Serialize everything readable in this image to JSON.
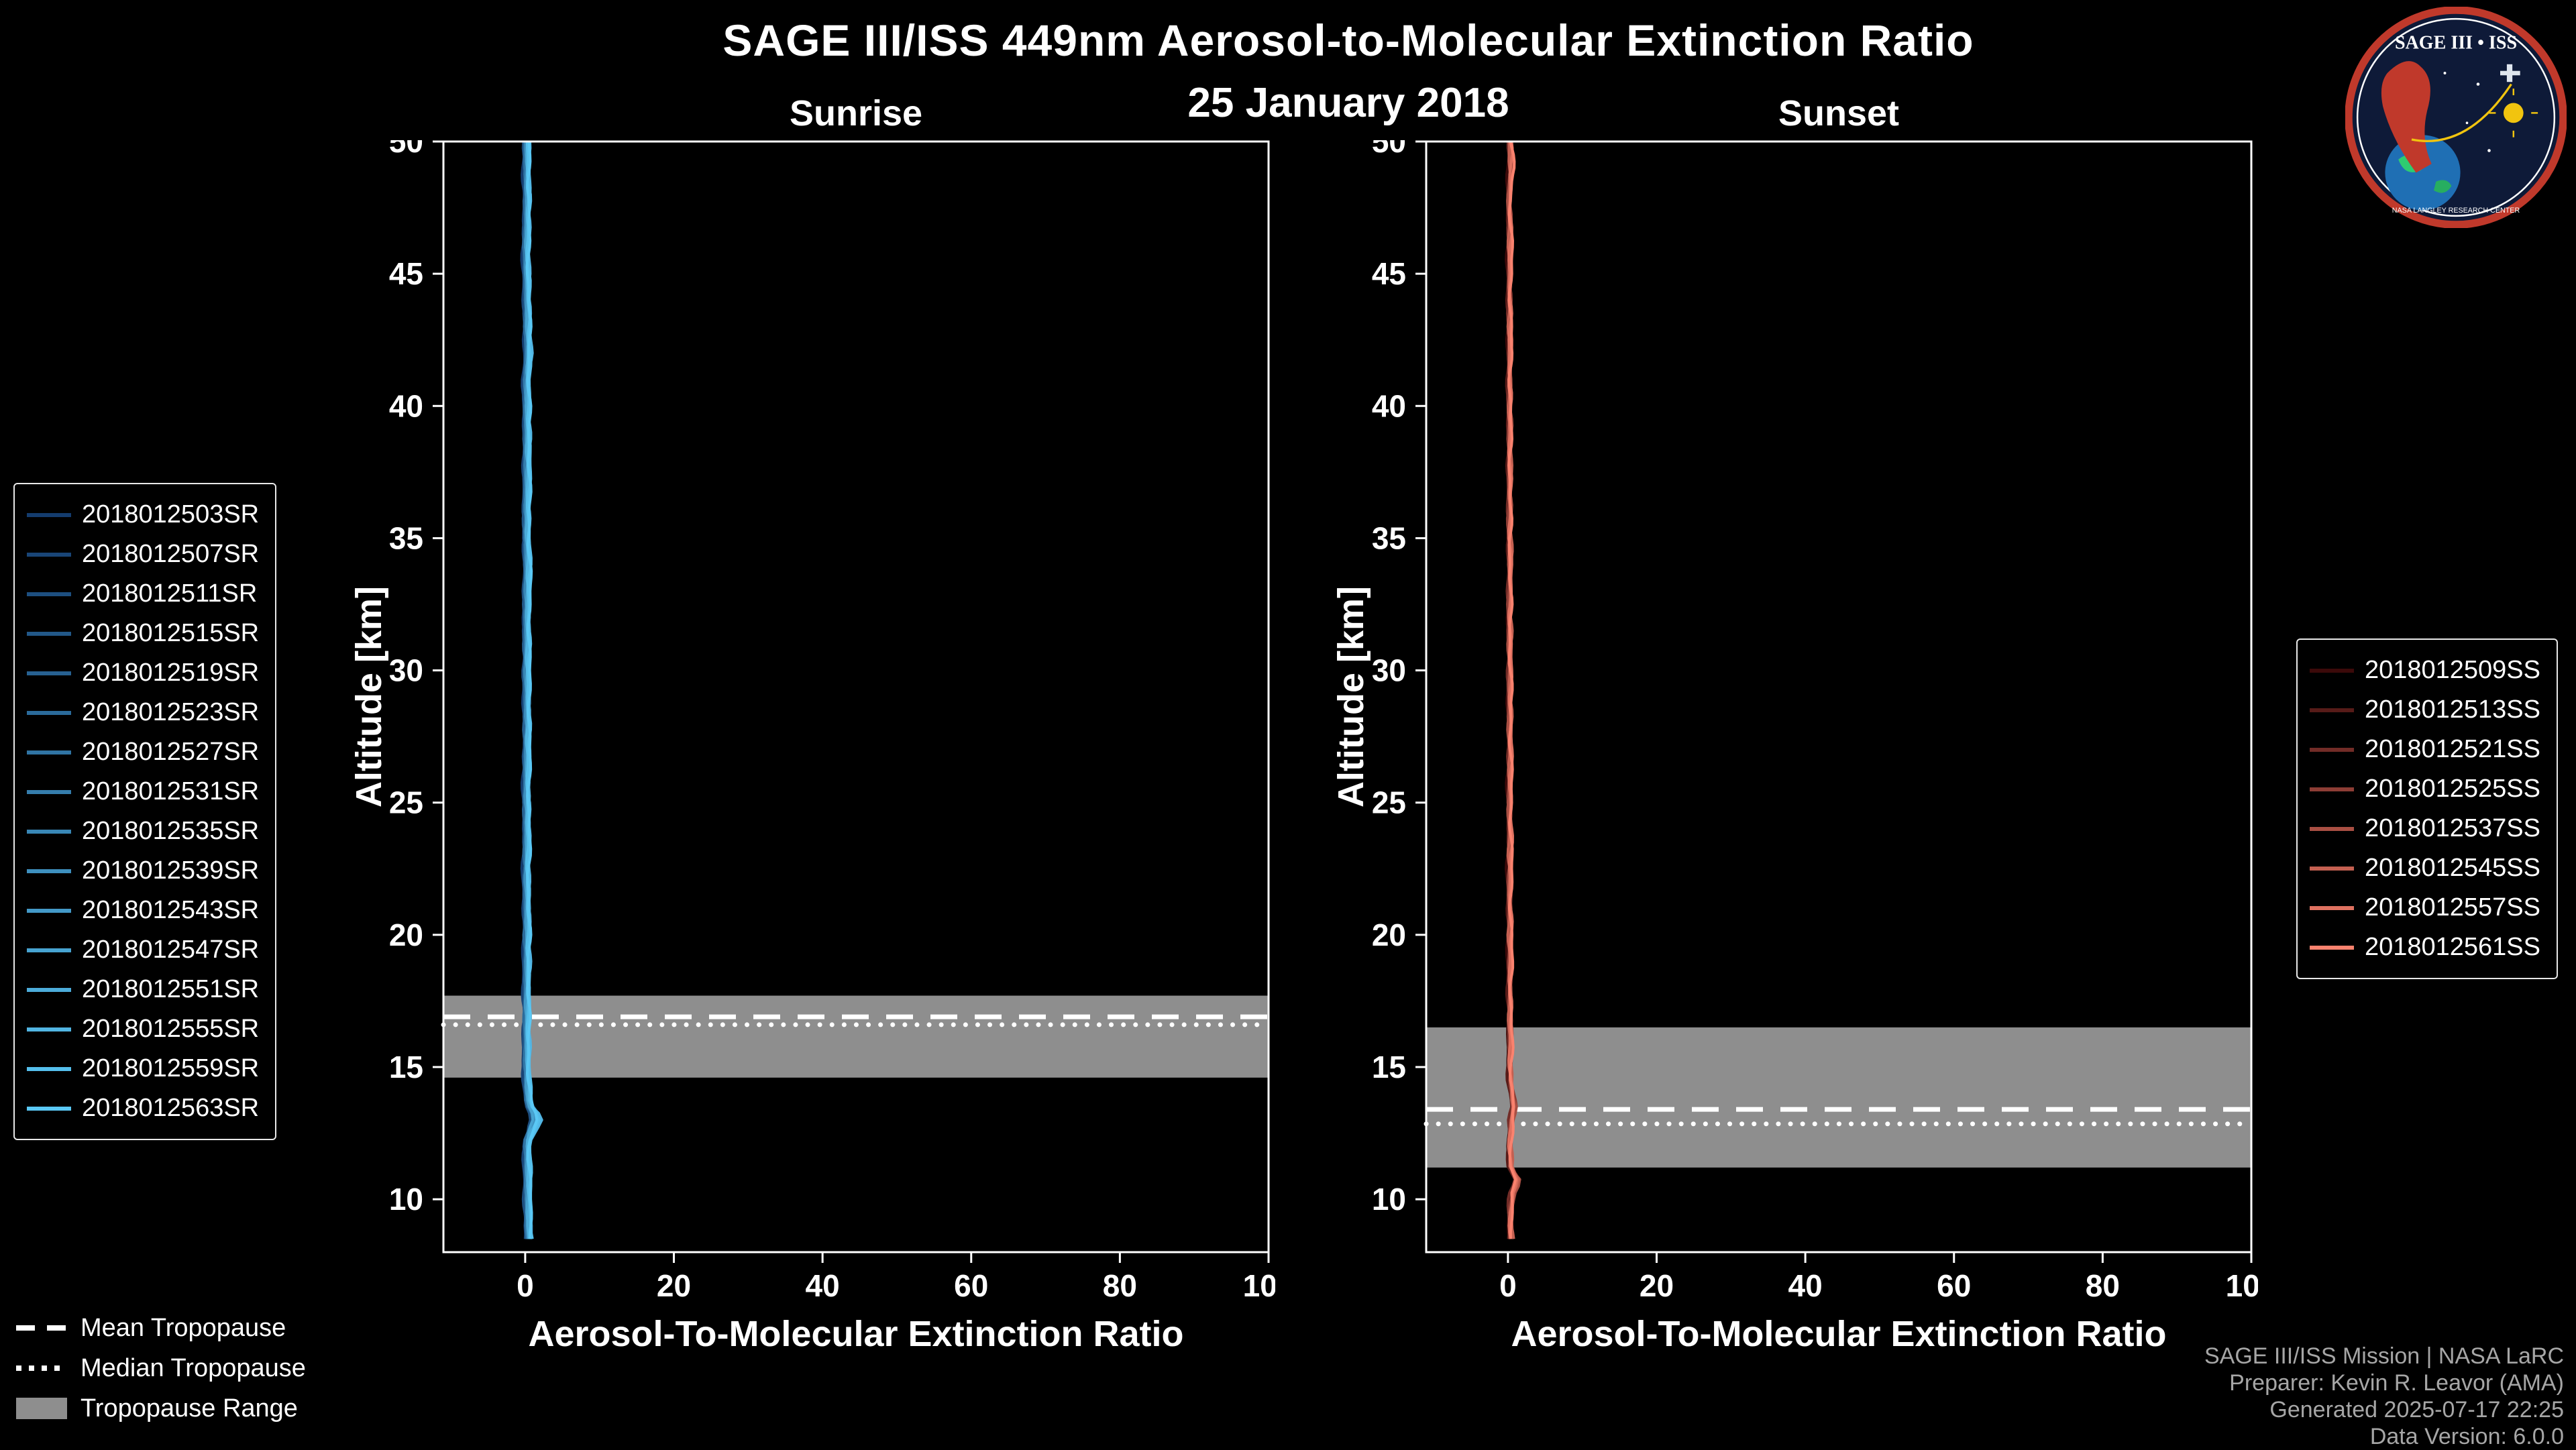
{
  "header": {
    "title": "SAGE III/ISS 449nm Aerosol-to-Molecular Extinction Ratio",
    "date": "25 January 2018"
  },
  "logo": {
    "title": "SAGE III • ISS",
    "rim_text": "NASA LANGLEY RESEARCH CENTER"
  },
  "legend_bottom": {
    "items": [
      {
        "label": "Mean Tropopause",
        "style": "dashed"
      },
      {
        "label": "Median Tropopause",
        "style": "dotted"
      },
      {
        "label": "Tropopause Range",
        "style": "patch"
      }
    ]
  },
  "credits": {
    "lines": [
      "SAGE III/ISS Mission | NASA LaRC",
      "Preparer: Kevin R. Leavor (AMA)",
      "Generated 2025-07-17 22:25",
      "Data Version: 6.0.0"
    ]
  },
  "chart_data": [
    {
      "type": "line",
      "title": "Sunrise",
      "xlabel": "Aerosol-To-Molecular Extinction Ratio",
      "ylabel": "Altitude [km]",
      "xlim": [
        -11,
        100
      ],
      "ylim": [
        8,
        50
      ],
      "xticks": [
        0,
        20,
        40,
        60,
        80,
        100
      ],
      "yticks": [
        10,
        15,
        20,
        25,
        30,
        35,
        40,
        45,
        50
      ],
      "grid": false,
      "legend_position": "outside-left",
      "band_color": "#8e8e8e",
      "tropopause": {
        "mean": 16.9,
        "median": 16.6,
        "range": [
          14.6,
          17.7
        ]
      },
      "series": [
        {
          "name": "2018012503SR",
          "color": "#143C6E"
        },
        {
          "name": "2018012507SR",
          "color": "#194577"
        },
        {
          "name": "2018012511SR",
          "color": "#1D4F80"
        },
        {
          "name": "2018012515SR",
          "color": "#225889"
        },
        {
          "name": "2018012519SR",
          "color": "#276192"
        },
        {
          "name": "2018012523SR",
          "color": "#2B6B9B"
        },
        {
          "name": "2018012527SR",
          "color": "#3074A4"
        },
        {
          "name": "2018012531SR",
          "color": "#357DAD"
        },
        {
          "name": "2018012535SR",
          "color": "#3987B6"
        },
        {
          "name": "2018012539SR",
          "color": "#3E90BF"
        },
        {
          "name": "2018012543SR",
          "color": "#4399C8"
        },
        {
          "name": "2018012547SR",
          "color": "#47A3D1"
        },
        {
          "name": "2018012551SR",
          "color": "#4CACDA"
        },
        {
          "name": "2018012555SR",
          "color": "#51B5E3"
        },
        {
          "name": "2018012559SR",
          "color": "#55BFEC"
        },
        {
          "name": "2018012563SR",
          "color": "#5AC8F5"
        }
      ],
      "profile": [
        [
          50,
          0.2
        ],
        [
          48,
          0.35
        ],
        [
          46,
          0.15
        ],
        [
          44,
          0.3
        ],
        [
          42,
          0.45
        ],
        [
          41,
          0.2
        ],
        [
          40,
          0.25
        ],
        [
          38,
          0.3
        ],
        [
          36,
          0.2
        ],
        [
          34,
          0.3
        ],
        [
          32,
          0.25
        ],
        [
          30,
          0.2
        ],
        [
          28,
          0.3
        ],
        [
          26,
          0.2
        ],
        [
          24,
          0.25
        ],
        [
          22,
          0.2
        ],
        [
          20,
          0.3
        ],
        [
          18,
          0.25
        ],
        [
          16,
          0.2
        ],
        [
          14.5,
          0.3
        ],
        [
          13.6,
          0.5
        ],
        [
          13.1,
          2.0
        ],
        [
          12.6,
          1.0
        ],
        [
          12.2,
          0.4
        ],
        [
          11.5,
          0.3
        ],
        [
          10.5,
          0.35
        ],
        [
          9.5,
          0.45
        ],
        [
          8.5,
          0.6
        ]
      ]
    },
    {
      "type": "line",
      "title": "Sunset",
      "xlabel": "Aerosol-To-Molecular Extinction Ratio",
      "ylabel": "Altitude [km]",
      "xlim": [
        -11,
        100
      ],
      "ylim": [
        8,
        50
      ],
      "xticks": [
        0,
        20,
        40,
        60,
        80,
        100
      ],
      "yticks": [
        10,
        15,
        20,
        25,
        30,
        35,
        40,
        45,
        50
      ],
      "grid": false,
      "legend_position": "outside-right",
      "band_color": "#8e8e8e",
      "tropopause": {
        "mean": 13.4,
        "median": 12.85,
        "range": [
          11.2,
          16.5
        ]
      },
      "series": [
        {
          "name": "2018012509SS",
          "color": "#3C0A0A"
        },
        {
          "name": "2018012513SS",
          "color": "#571B18"
        },
        {
          "name": "2018012521SS",
          "color": "#722C27"
        },
        {
          "name": "2018012525SS",
          "color": "#8D3D35"
        },
        {
          "name": "2018012537SS",
          "color": "#A94F43"
        },
        {
          "name": "2018012545SS",
          "color": "#C46051"
        },
        {
          "name": "2018012557SS",
          "color": "#DF7160"
        },
        {
          "name": "2018012561SS",
          "color": "#FA826E"
        }
      ],
      "profile": [
        [
          50,
          0.25
        ],
        [
          49,
          0.5
        ],
        [
          48,
          0.2
        ],
        [
          46,
          0.3
        ],
        [
          44,
          0.25
        ],
        [
          42,
          0.3
        ],
        [
          40,
          0.25
        ],
        [
          38,
          0.3
        ],
        [
          36,
          0.25
        ],
        [
          34,
          0.3
        ],
        [
          32,
          0.25
        ],
        [
          30,
          0.25
        ],
        [
          28,
          0.3
        ],
        [
          26,
          0.25
        ],
        [
          24,
          0.3
        ],
        [
          22,
          0.25
        ],
        [
          20,
          0.3
        ],
        [
          18,
          0.3
        ],
        [
          16,
          0.35
        ],
        [
          14.5,
          0.4
        ],
        [
          13.5,
          1.0
        ],
        [
          13.0,
          0.5
        ],
        [
          12.0,
          0.35
        ],
        [
          11.2,
          0.4
        ],
        [
          10.7,
          1.8
        ],
        [
          10.2,
          0.7
        ],
        [
          9.5,
          0.35
        ],
        [
          8.5,
          0.45
        ]
      ]
    }
  ]
}
